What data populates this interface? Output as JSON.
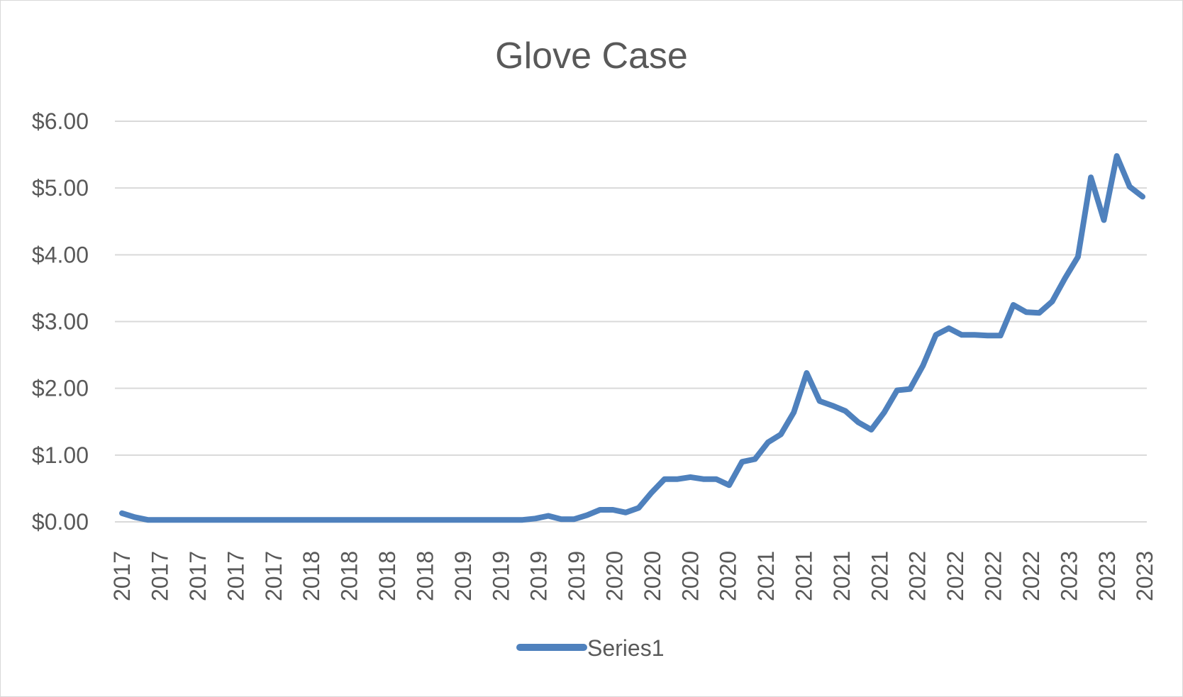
{
  "chart_data": {
    "type": "line",
    "title": "Glove Case",
    "xlabel": "",
    "ylabel": "",
    "ylim": [
      0,
      6
    ],
    "y_ticks": [
      "$0.00",
      "$1.00",
      "$2.00",
      "$3.00",
      "$4.00",
      "$5.00",
      "$6.00"
    ],
    "x_tick_labels": [
      "2017",
      "2017",
      "2017",
      "2017",
      "2017",
      "2018",
      "2018",
      "2018",
      "2018",
      "2019",
      "2019",
      "2019",
      "2019",
      "2020",
      "2020",
      "2020",
      "2020",
      "2021",
      "2021",
      "2021",
      "2021",
      "2022",
      "2022",
      "2022",
      "2022",
      "2023",
      "2023",
      "2023"
    ],
    "grid": true,
    "legend": "bottom",
    "colors": {
      "series": "#4f81bd",
      "grid": "#d9d9d9",
      "text": "#595959"
    },
    "series": [
      {
        "name": "Series1",
        "values": [
          0.13,
          0.07,
          0.03,
          0.03,
          0.03,
          0.03,
          0.03,
          0.03,
          0.03,
          0.03,
          0.03,
          0.03,
          0.03,
          0.03,
          0.03,
          0.03,
          0.03,
          0.03,
          0.03,
          0.03,
          0.03,
          0.03,
          0.03,
          0.03,
          0.03,
          0.03,
          0.03,
          0.03,
          0.03,
          0.03,
          0.03,
          0.03,
          0.05,
          0.09,
          0.04,
          0.04,
          0.1,
          0.18,
          0.18,
          0.14,
          0.21,
          0.44,
          0.64,
          0.64,
          0.67,
          0.64,
          0.64,
          0.55,
          0.9,
          0.94,
          1.19,
          1.31,
          1.64,
          2.23,
          1.81,
          1.74,
          1.66,
          1.49,
          1.38,
          1.64,
          1.97,
          1.99,
          2.34,
          2.8,
          2.9,
          2.8,
          2.8,
          2.79,
          2.79,
          3.25,
          3.14,
          3.13,
          3.3,
          3.65,
          3.97,
          5.16,
          4.52,
          5.48,
          5.02,
          4.87
        ]
      }
    ]
  }
}
